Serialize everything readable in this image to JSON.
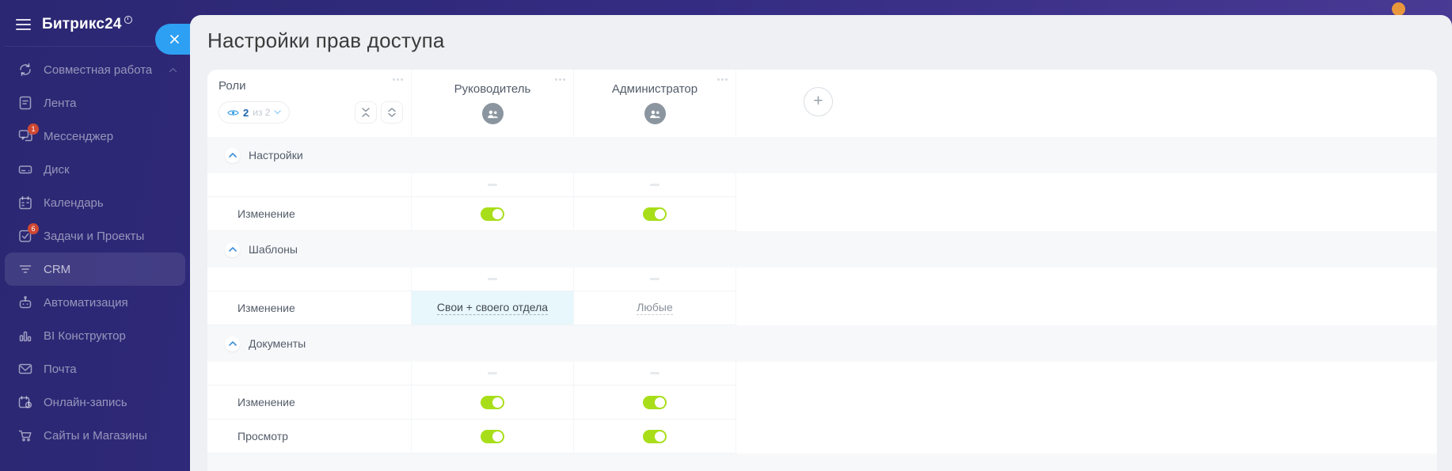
{
  "app": {
    "logo": "Битрикс24"
  },
  "sidebar": {
    "items": [
      {
        "id": "collaboration",
        "label": "Совместная работа",
        "icon": "sync-icon",
        "trailing_chevron": true
      },
      {
        "id": "feed",
        "label": "Лента",
        "icon": "feed-icon"
      },
      {
        "id": "messenger",
        "label": "Мессенджер",
        "icon": "messenger-icon",
        "badge": "1"
      },
      {
        "id": "drive",
        "label": "Диск",
        "icon": "drive-icon"
      },
      {
        "id": "calendar",
        "label": "Календарь",
        "icon": "calendar-icon"
      },
      {
        "id": "tasks",
        "label": "Задачи и Проекты",
        "icon": "tasks-icon",
        "badge": "6"
      },
      {
        "id": "crm",
        "label": "CRM",
        "icon": "crm-funnel-icon",
        "active": true
      },
      {
        "id": "automation",
        "label": "Автоматизация",
        "icon": "automation-robot-icon"
      },
      {
        "id": "bi",
        "label": "BI Конструктор",
        "icon": "bi-chart-icon"
      },
      {
        "id": "mail",
        "label": "Почта",
        "icon": "mail-icon"
      },
      {
        "id": "booking",
        "label": "Онлайн-запись",
        "icon": "booking-icon"
      },
      {
        "id": "sites",
        "label": "Сайты и Магазины",
        "icon": "cart-icon"
      }
    ]
  },
  "panel": {
    "title": "Настройки прав доступа",
    "table": {
      "roles_header": "Роли",
      "filter": {
        "count": "2",
        "of": "из 2"
      },
      "columns": [
        "Руководитель",
        "Администратор"
      ],
      "add_role_label": "+",
      "sections": [
        {
          "title": "Настройки",
          "rows": [
            {
              "label": "Изменение",
              "cells": [
                {
                  "type": "toggle",
                  "on": true
                },
                {
                  "type": "toggle",
                  "on": true
                }
              ]
            }
          ]
        },
        {
          "title": "Шаблоны",
          "rows": [
            {
              "label": "Изменение",
              "cells": [
                {
                  "type": "select",
                  "text": "Свои + своего отдела",
                  "highlighted": true
                },
                {
                  "type": "select",
                  "text": "Любые",
                  "highlighted": false
                }
              ]
            }
          ]
        },
        {
          "title": "Документы",
          "rows": [
            {
              "label": "Изменение",
              "cells": [
                {
                  "type": "toggle",
                  "on": true
                },
                {
                  "type": "toggle",
                  "on": true
                }
              ]
            },
            {
              "label": "Просмотр",
              "cells": [
                {
                  "type": "toggle",
                  "on": true
                },
                {
                  "type": "toggle",
                  "on": true
                }
              ]
            }
          ]
        }
      ]
    }
  },
  "colors": {
    "accent_blue": "#2ea0f3",
    "toggle_on": "#a8de19",
    "section_chevron_blue": "#3f8fd8",
    "highlight_cell": "#e7f7fc",
    "badge_red": "#cf4732",
    "notification_orange": "#e8973c",
    "sidebar_top": "#2b2772",
    "sidebar_bottom": "#4b3b96"
  }
}
